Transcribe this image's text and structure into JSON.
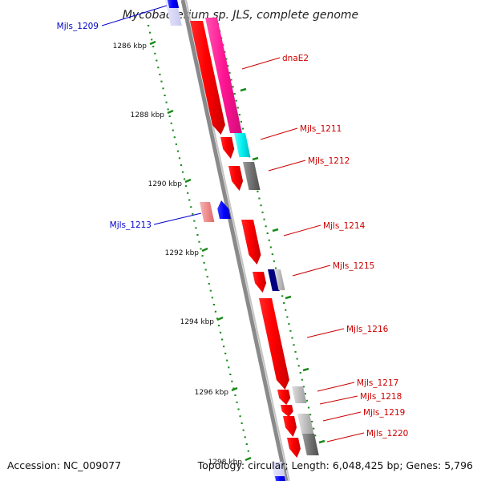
{
  "title": "Mycobacterium sp. JLS, complete genome",
  "footer": {
    "accession": "Accession: NC_009077",
    "stats": "Topology: circular; Length: 6,048,425 bp; Genes: 5,796"
  },
  "scale_labels": [
    "1286 kbp",
    "1288 kbp",
    "1290 kbp",
    "1292 kbp",
    "1294 kbp",
    "1296 kbp",
    "1298 kbp"
  ],
  "gene_labels": [
    {
      "text": "Mjls_1209",
      "color": "#0000cc"
    },
    {
      "text": "dnaE2",
      "color": "#cc0000"
    },
    {
      "text": "Mjls_1211",
      "color": "#cc0000"
    },
    {
      "text": "Mjls_1212",
      "color": "#cc0000"
    },
    {
      "text": "Mjls_1213",
      "color": "#0000cc"
    },
    {
      "text": "Mjls_1214",
      "color": "#cc0000"
    },
    {
      "text": "Mjls_1215",
      "color": "#cc0000"
    },
    {
      "text": "Mjls_1216",
      "color": "#cc0000"
    },
    {
      "text": "Mjls_1217",
      "color": "#cc0000"
    },
    {
      "text": "Mjls_1218",
      "color": "#cc0000"
    },
    {
      "text": "Mjls_1219",
      "color": "#cc0000"
    },
    {
      "text": "Mjls_1220",
      "color": "#cc0000"
    }
  ],
  "colors": {
    "forward_cds": "#ff0000",
    "reverse_cds": "#0000ff",
    "dnaE2_feature": "#ff1493",
    "mjls_1211_feature": "#00e5ee",
    "backbone": "#808080",
    "ticks": "#1a8a1a"
  }
}
